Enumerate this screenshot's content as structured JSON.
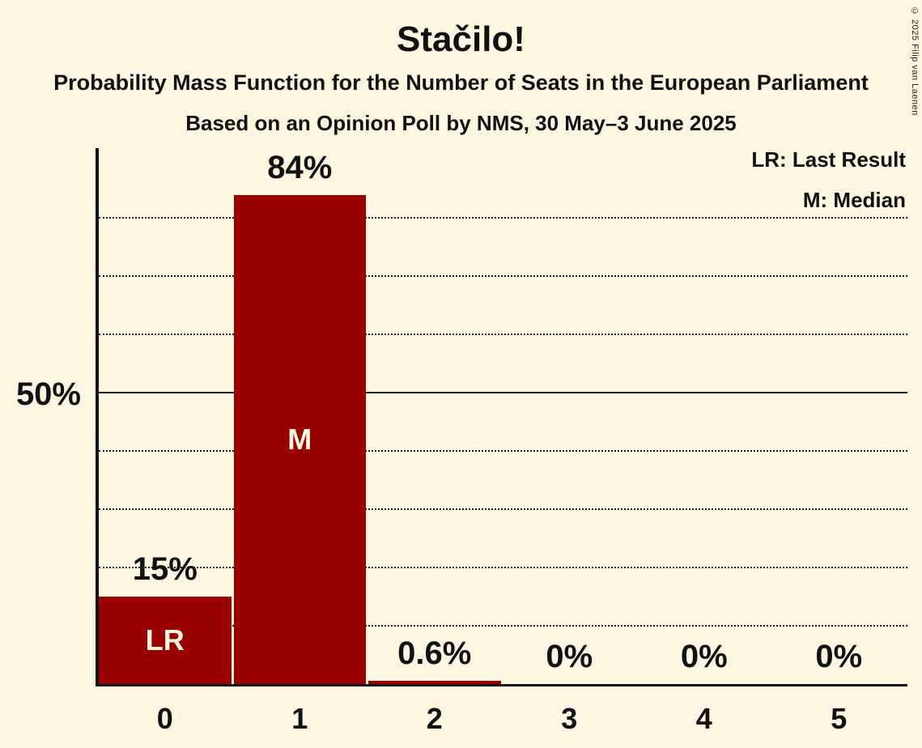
{
  "title": "Stačilo!",
  "subtitle1": "Probability Mass Function for the Number of Seats in the European Parliament",
  "subtitle2": "Based on an Opinion Poll by NMS, 30 May–3 June 2025",
  "copyright": "© 2025 Filip van Laenen",
  "legend": {
    "items": [
      {
        "label": "LR: Last Result"
      },
      {
        "label": "M: Median"
      }
    ]
  },
  "colors": {
    "background": "#fdf7e2",
    "bar": "#990000",
    "text": "#111111",
    "grid": "#1a1a1a"
  },
  "chart_data": {
    "type": "bar",
    "title": "Stačilo!",
    "categories": [
      "0",
      "1",
      "2",
      "3",
      "4",
      "5"
    ],
    "values": [
      15,
      84,
      0.6,
      0,
      0,
      0
    ],
    "value_labels": [
      "15%",
      "84%",
      "0.6%",
      "0%",
      "0%",
      "0%"
    ],
    "bar_annotations": [
      "LR",
      "M",
      "",
      "",
      "",
      ""
    ],
    "xlabel": "",
    "ylabel": "",
    "yaxis_label": "50%",
    "yaxis_label_pct": 50,
    "ylim": [
      0,
      92
    ],
    "solid_gridline_pct": 50,
    "dotted_gridlines_pct": [
      10,
      20,
      30,
      40,
      60,
      70,
      80
    ],
    "grid": "horizontal, dotted except solid at 50%",
    "legend_position": "top-right",
    "bar_color": "#990000"
  }
}
